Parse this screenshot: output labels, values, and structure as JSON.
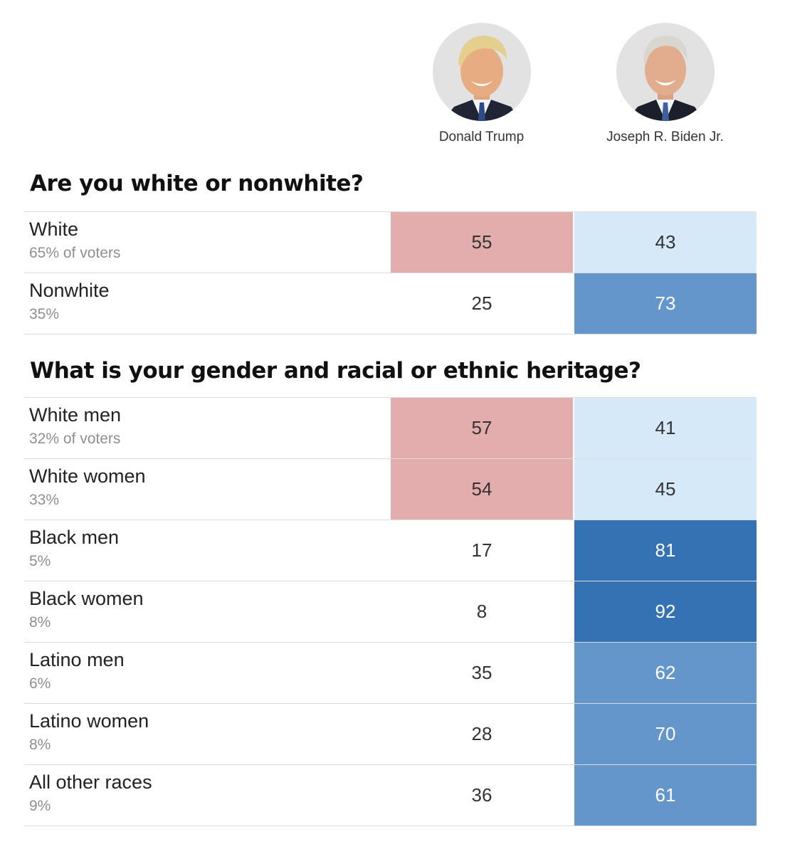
{
  "candidates": [
    {
      "name": "Donald Trump",
      "party": "rep"
    },
    {
      "name": "Joseph R. Biden Jr.",
      "party": "dem"
    }
  ],
  "colors": {
    "rep_strong": "#e3adad",
    "rep_light": "#f6dfdf",
    "dem_lightest": "#d5e9f8",
    "dem_light": "#9bbde0",
    "dem_mid": "#6495cb",
    "dem_strong": "#3472b3",
    "none": "#ffffff"
  },
  "chart_data": {
    "type": "table",
    "columns": [
      "Donald Trump",
      "Joseph R. Biden Jr."
    ],
    "sections": [
      {
        "question": "Are you white or nonwhite?",
        "rows": [
          {
            "label": "White",
            "share": "65% of voters",
            "trump": 55,
            "biden": 43
          },
          {
            "label": "Nonwhite",
            "share": "35%",
            "trump": 25,
            "biden": 73
          }
        ]
      },
      {
        "question": "What is your gender and racial or ethnic heritage?",
        "rows": [
          {
            "label": "White men",
            "share": "32% of voters",
            "trump": 57,
            "biden": 41
          },
          {
            "label": "White women",
            "share": "33%",
            "trump": 54,
            "biden": 45
          },
          {
            "label": "Black men",
            "share": "5%",
            "trump": 17,
            "biden": 81
          },
          {
            "label": "Black women",
            "share": "8%",
            "trump": 8,
            "biden": 92
          },
          {
            "label": "Latino men",
            "share": "6%",
            "trump": 35,
            "biden": 62
          },
          {
            "label": "Latino women",
            "share": "8%",
            "trump": 28,
            "biden": 70
          },
          {
            "label": "All other races",
            "share": "9%",
            "trump": 36,
            "biden": 61
          }
        ]
      }
    ]
  }
}
